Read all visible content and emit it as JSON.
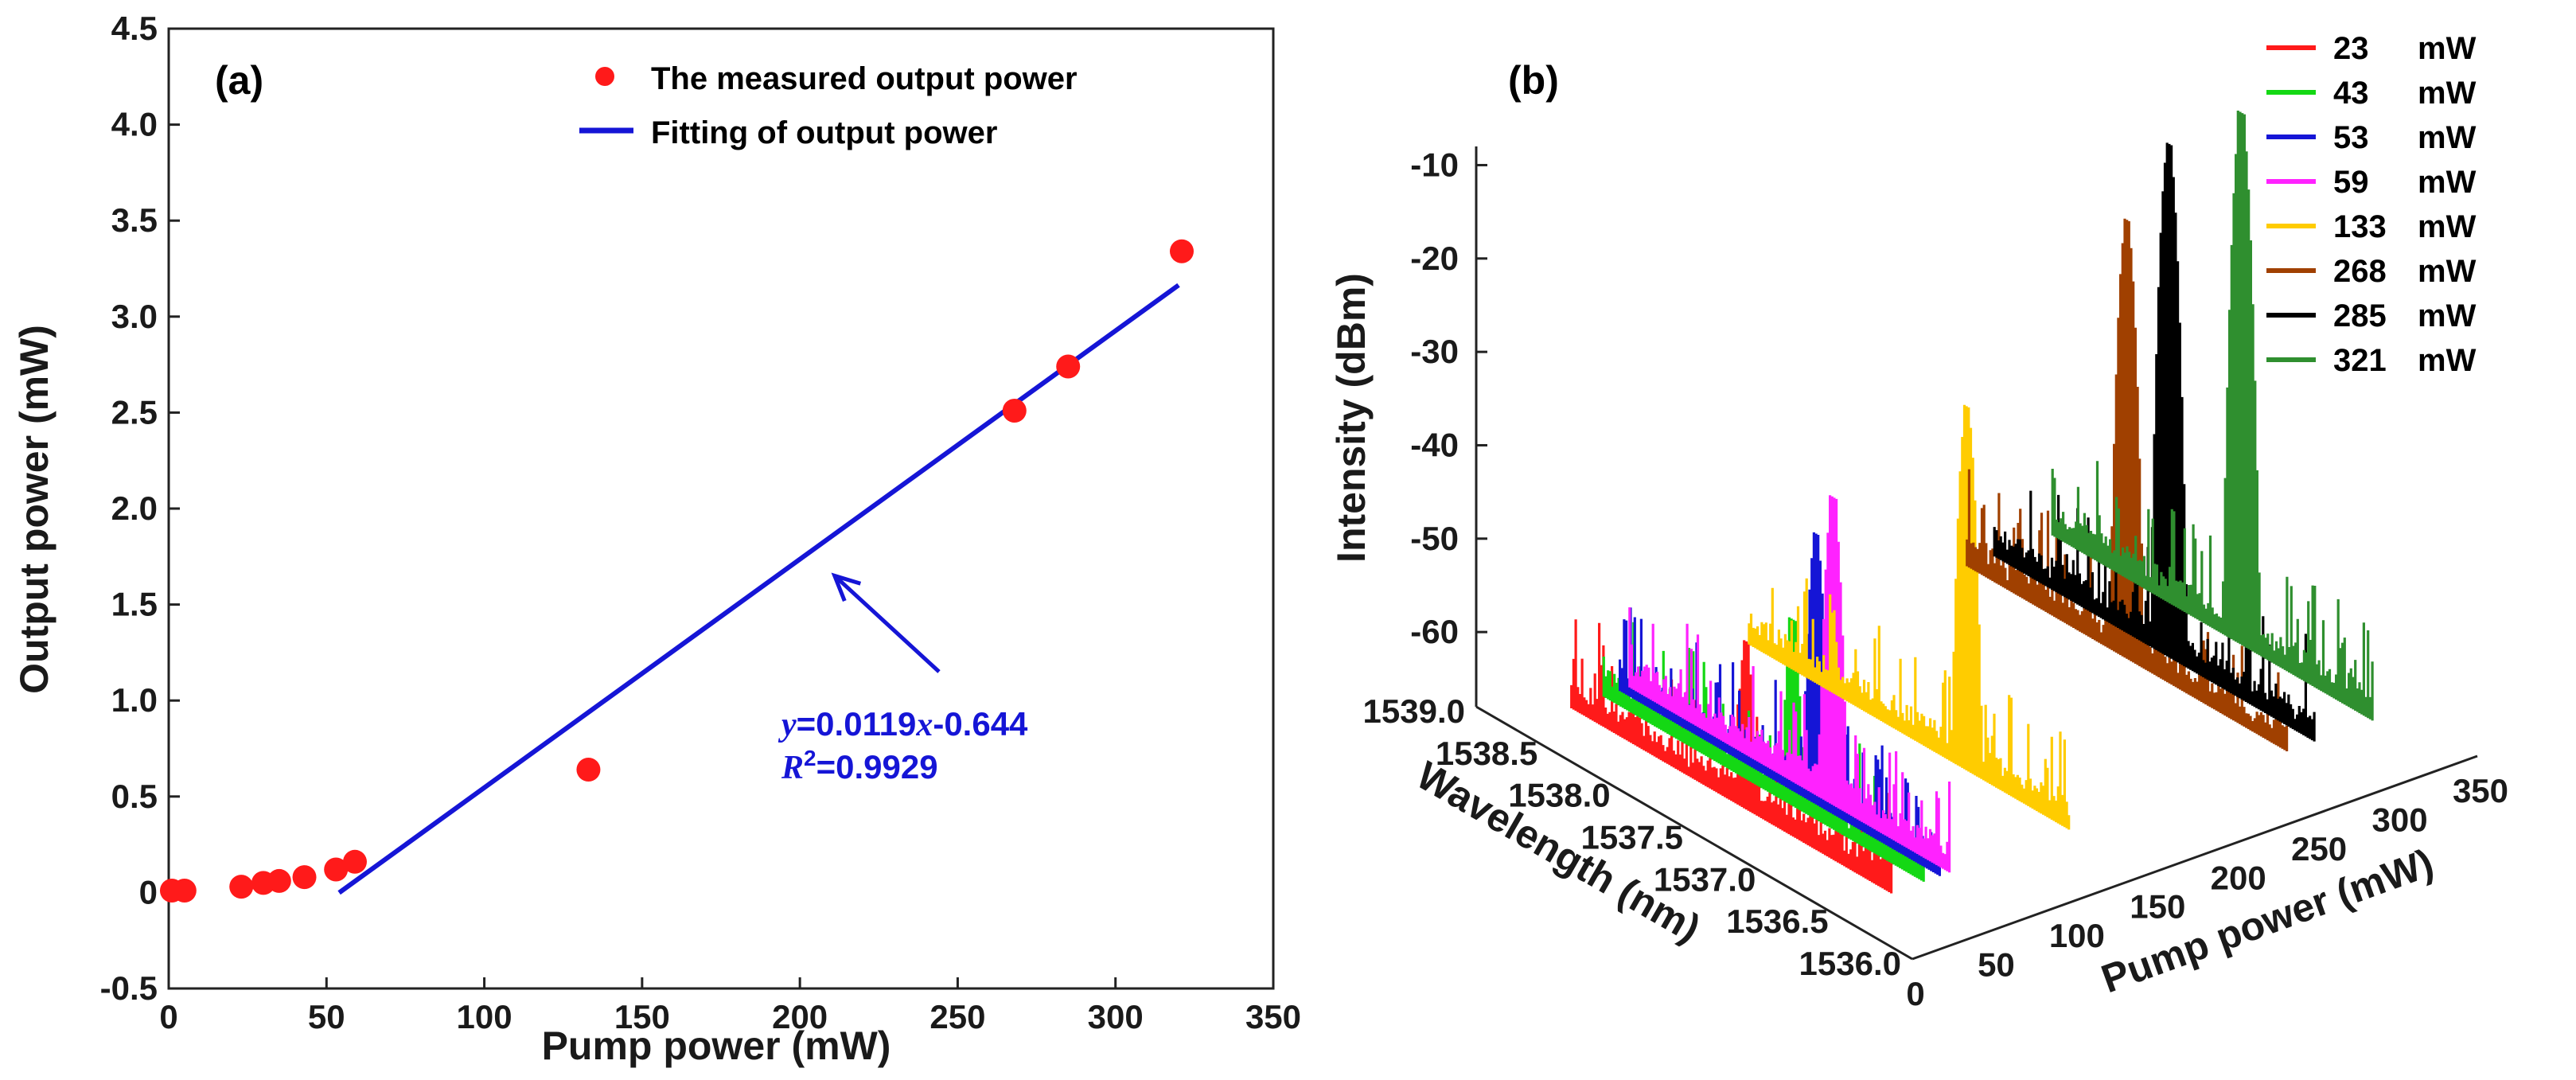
{
  "chart_data": [
    {
      "panel": "(a)",
      "type": "scatter",
      "xlabel": "Pump power (mW)",
      "ylabel": "Output power (mW)",
      "xlim": [
        0,
        350
      ],
      "ylim": [
        -0.5,
        4.5
      ],
      "x_ticks": [
        0,
        50,
        100,
        150,
        200,
        250,
        300,
        350
      ],
      "y_ticks": [
        -0.5,
        0,
        0.5,
        1.0,
        1.5,
        2.0,
        2.5,
        3.0,
        3.5,
        4.0,
        4.5
      ],
      "y_tick_labels": [
        "-0.5",
        "0",
        "0.5",
        "1.0",
        "1.5",
        "2.0",
        "2.5",
        "3.0",
        "3.5",
        "4.0",
        "4.5"
      ],
      "series": [
        {
          "name": "The measured output power",
          "kind": "points",
          "color": "#ff1a1a",
          "x": [
            1,
            5,
            23,
            30,
            35,
            43,
            53,
            59,
            133,
            268,
            285,
            321
          ],
          "y": [
            0.01,
            0.01,
            0.03,
            0.05,
            0.06,
            0.08,
            0.12,
            0.16,
            0.64,
            2.51,
            2.74,
            3.34
          ]
        },
        {
          "name": "Fitting of output power",
          "kind": "line",
          "color": "#1515d6",
          "slope": 0.0119,
          "intercept": -0.644,
          "x_range": [
            54,
            320
          ]
        }
      ],
      "annotation": {
        "eq_y": "y",
        "eq_mid": "=0.0119",
        "eq_x": "x",
        "eq_rest": "-0.644",
        "r2_R": "R",
        "r2_sup": "2",
        "r2_val": "=0.9929",
        "arrow_target": [
          211,
          1.65
        ]
      }
    },
    {
      "panel": "(b)",
      "type": "line",
      "subtype": "3d-waterfall",
      "xlabel": "Wavelength (nm)",
      "ylabel": "Pump power (mW)",
      "zlabel": "Intensity (dBm)",
      "wavelength_ticks": [
        "1539.0",
        "1538.5",
        "1538.0",
        "1537.5",
        "1537.0",
        "1536.5",
        "1536.0"
      ],
      "pump_ticks": [
        "0",
        "50",
        "100",
        "150",
        "200",
        "250",
        "300",
        "350"
      ],
      "intensity_ticks": [
        "-10",
        "-20",
        "-30",
        "-40",
        "-50",
        "-60"
      ],
      "zlim": [
        -68,
        -8
      ],
      "series": [
        {
          "name": "23 mW",
          "pump": 23,
          "color": "#ff1a1a",
          "peak_wavelength": 1537.4,
          "peak_dbm": -48
        },
        {
          "name": "43 mW",
          "pump": 43,
          "color": "#14d814",
          "peak_wavelength": 1537.3,
          "peak_dbm": -46
        },
        {
          "name": "53 mW",
          "pump": 53,
          "color": "#1515d6",
          "peak_wavelength": 1537.25,
          "peak_dbm": -37
        },
        {
          "name": "59 mW",
          "pump": 59,
          "color": "#ff22ff",
          "peak_wavelength": 1537.2,
          "peak_dbm": -33
        },
        {
          "name": "133 mW",
          "pump": 133,
          "color": "#ffcc00",
          "peak_wavelength": 1537.1,
          "peak_dbm": -27
        },
        {
          "name": "268 mW",
          "pump": 268,
          "color": "#a04000",
          "peak_wavelength": 1537.5,
          "peak_dbm": -19
        },
        {
          "name": "285 mW",
          "pump": 285,
          "color": "#000000",
          "peak_wavelength": 1537.4,
          "peak_dbm": -11
        },
        {
          "name": "321 mW",
          "pump": 321,
          "color": "#2f8f2f",
          "peak_wavelength": 1537.3,
          "peak_dbm": -9
        }
      ],
      "legend": [
        {
          "value": "23",
          "unit": "mW"
        },
        {
          "value": "43",
          "unit": "mW"
        },
        {
          "value": "53",
          "unit": "mW"
        },
        {
          "value": "59",
          "unit": "mW"
        },
        {
          "value": "133",
          "unit": "mW"
        },
        {
          "value": "268",
          "unit": "mW"
        },
        {
          "value": "285",
          "unit": "mW"
        },
        {
          "value": "321",
          "unit": "mW"
        }
      ]
    }
  ]
}
